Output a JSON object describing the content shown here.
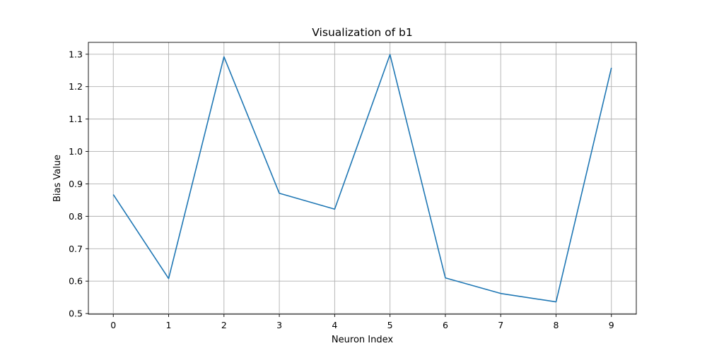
{
  "chart_data": {
    "type": "line",
    "title": "Visualization of b1",
    "xlabel": "Neuron Index",
    "ylabel": "Bias Value",
    "x": [
      0,
      1,
      2,
      3,
      4,
      5,
      6,
      7,
      8,
      9
    ],
    "series": [
      {
        "values": [
          0.867,
          0.608,
          1.292,
          0.871,
          0.822,
          1.299,
          0.61,
          0.562,
          0.536,
          1.258
        ],
        "color": "#1f77b4"
      }
    ],
    "xticks": [
      0,
      1,
      2,
      3,
      4,
      5,
      6,
      7,
      8,
      9
    ],
    "yticks": [
      0.5,
      0.6,
      0.7,
      0.8,
      0.9,
      1.0,
      1.1,
      1.2,
      1.3
    ],
    "ytick_labels": [
      "0.5",
      "0.6",
      "0.7",
      "0.8",
      "0.9",
      "1.0",
      "1.1",
      "1.2",
      "1.3"
    ],
    "xlim": [
      -0.45,
      9.45
    ],
    "ylim": [
      0.4981,
      1.3366
    ],
    "grid": true
  }
}
